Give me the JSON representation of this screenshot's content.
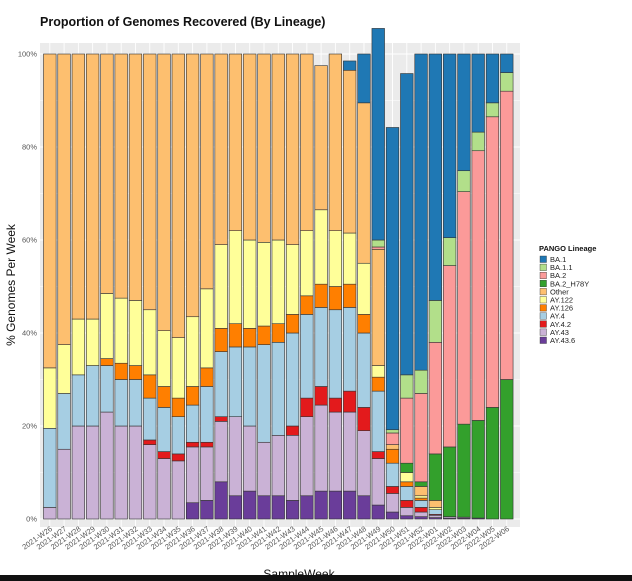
{
  "chart_data": {
    "type": "bar",
    "stacked": true,
    "title": "Proportion of Genomes Recovered (By Lineage)",
    "xlabel": "SampleWeek",
    "ylabel": "% Genomes Per Week",
    "ylim": [
      0,
      100
    ],
    "yticks": [
      "0%",
      "20%",
      "40%",
      "60%",
      "80%",
      "100%"
    ],
    "legend_title": "PANGO Lineage",
    "legend_position": "right",
    "categories": [
      "2021-W26",
      "2021-W27",
      "2021-W28",
      "2021-W29",
      "2021-W30",
      "2021-W31",
      "2021-W32",
      "2021-W33",
      "2021-W34",
      "2021-W35",
      "2021-W36",
      "2021-W37",
      "2021-W38",
      "2021-W39",
      "2021-W40",
      "2021-W41",
      "2021-W42",
      "2021-W43",
      "2021-W44",
      "2021-W45",
      "2021-W46",
      "2021-W47",
      "2021-W48",
      "2021-W49",
      "2021-W50",
      "2021-W51",
      "2021-W52",
      "2022-W01",
      "2022-W02",
      "2022-W03",
      "2022-W04",
      "2022-W05",
      "2022-W06"
    ],
    "series": [
      {
        "name": "AY.43.6",
        "color": "#6a3d9a",
        "values": [
          0,
          0,
          0,
          0,
          0,
          0,
          0,
          0,
          0,
          0,
          3.5,
          4,
          8,
          5,
          6,
          5,
          5,
          4,
          5,
          6,
          6,
          6,
          5,
          3,
          1.5,
          0.7,
          0.5,
          0.3,
          0.2,
          0.2,
          0.2,
          0,
          0
        ]
      },
      {
        "name": "AY.43",
        "color": "#cab2d6",
        "values": [
          2.5,
          15,
          20,
          20,
          23,
          20,
          20,
          16,
          13,
          12.5,
          12,
          11.5,
          13,
          17,
          14,
          11.5,
          13,
          14,
          17,
          18.5,
          17,
          17,
          14,
          10,
          4,
          1.8,
          1,
          0.5,
          0.3,
          0.2,
          0,
          0,
          0
        ]
      },
      {
        "name": "AY.4.2",
        "color": "#e31a1c",
        "values": [
          0,
          0,
          0,
          0,
          0,
          0,
          0,
          1,
          1.5,
          1.5,
          1,
          1,
          1,
          0,
          0,
          0,
          0,
          2,
          4,
          4,
          3,
          4.5,
          5,
          1.5,
          1.5,
          1.5,
          1,
          0.2,
          0,
          0,
          0,
          0,
          0
        ]
      },
      {
        "name": "AY.4",
        "color": "#a6cee3",
        "values": [
          17,
          12,
          11,
          13,
          10,
          10,
          10,
          9,
          9.5,
          8,
          8,
          12,
          14,
          15,
          17,
          21,
          20,
          20,
          18,
          17,
          19,
          18,
          16,
          13,
          5,
          3,
          1.5,
          1,
          0,
          0,
          0,
          0,
          0
        ]
      },
      {
        "name": "AY.126",
        "color": "#ff7f00",
        "values": [
          0,
          0,
          0,
          0,
          1.5,
          3.5,
          3,
          5,
          4.5,
          4,
          4,
          4,
          5,
          5,
          4,
          4,
          4,
          4,
          4,
          5,
          5,
          5,
          4,
          3,
          3,
          1,
          0.5,
          0,
          0,
          0,
          0,
          0,
          0
        ]
      },
      {
        "name": "AY.122",
        "color": "#ffff99",
        "values": [
          13,
          10.5,
          12,
          10,
          14,
          14,
          14,
          14,
          12,
          13,
          15,
          17,
          18,
          20,
          19,
          18,
          18,
          15,
          14,
          16,
          12,
          11,
          11,
          2.5,
          0,
          2,
          0.5,
          0.5,
          0,
          0,
          0,
          0,
          0
        ]
      },
      {
        "name": "Other",
        "color": "#fdbf6f",
        "values": [
          67.5,
          62.5,
          57,
          57,
          51.5,
          52.5,
          53,
          55,
          59.5,
          61,
          56.5,
          50.5,
          41,
          38,
          40,
          40.5,
          40,
          41,
          38,
          31,
          38,
          35,
          34.5,
          25,
          1,
          0,
          2,
          1.5,
          0,
          0,
          0,
          0,
          0
        ]
      },
      {
        "name": "BA.2_H78Y",
        "color": "#33a02c",
        "values": [
          0,
          0,
          0,
          0,
          0,
          0,
          0,
          0,
          0,
          0,
          0,
          0,
          0,
          0,
          0,
          0,
          0,
          0,
          0,
          0,
          0,
          0,
          0,
          0,
          0,
          2,
          1,
          10,
          15,
          20,
          21,
          24,
          30
        ]
      },
      {
        "name": "BA.2",
        "color": "#fb9a99",
        "values": [
          0,
          0,
          0,
          0,
          0,
          0,
          0,
          0,
          0,
          0,
          0,
          0,
          0,
          0,
          0,
          0,
          0,
          0,
          0,
          0,
          0,
          0,
          0,
          0.5,
          2.5,
          14,
          19,
          24,
          39,
          50,
          58,
          62.5,
          62
        ]
      },
      {
        "name": "BA.1.1",
        "color": "#b2df8a",
        "values": [
          0,
          0,
          0,
          0,
          0,
          0,
          0,
          0,
          0,
          0,
          0,
          0,
          0,
          0,
          0,
          0,
          0,
          0,
          0,
          0,
          0,
          0,
          0,
          1.5,
          0.7,
          5,
          5,
          9,
          6,
          4.5,
          4,
          3,
          4
        ]
      },
      {
        "name": "BA.1",
        "color": "#1f78b4",
        "values": [
          0,
          0,
          0,
          0,
          0,
          0,
          0,
          0,
          0,
          0,
          0,
          0,
          0,
          0,
          0,
          0,
          0,
          0,
          0,
          0,
          0,
          2,
          10.5,
          45.5,
          65,
          64.8,
          68,
          53,
          39.5,
          25.1,
          16.8,
          10.5,
          4
        ]
      }
    ],
    "legend_order": [
      "BA.1",
      "BA.1.1",
      "BA.2",
      "BA.2_H78Y",
      "Other",
      "AY.122",
      "AY.126",
      "AY.4",
      "AY.4.2",
      "AY.43",
      "AY.43.6"
    ]
  }
}
